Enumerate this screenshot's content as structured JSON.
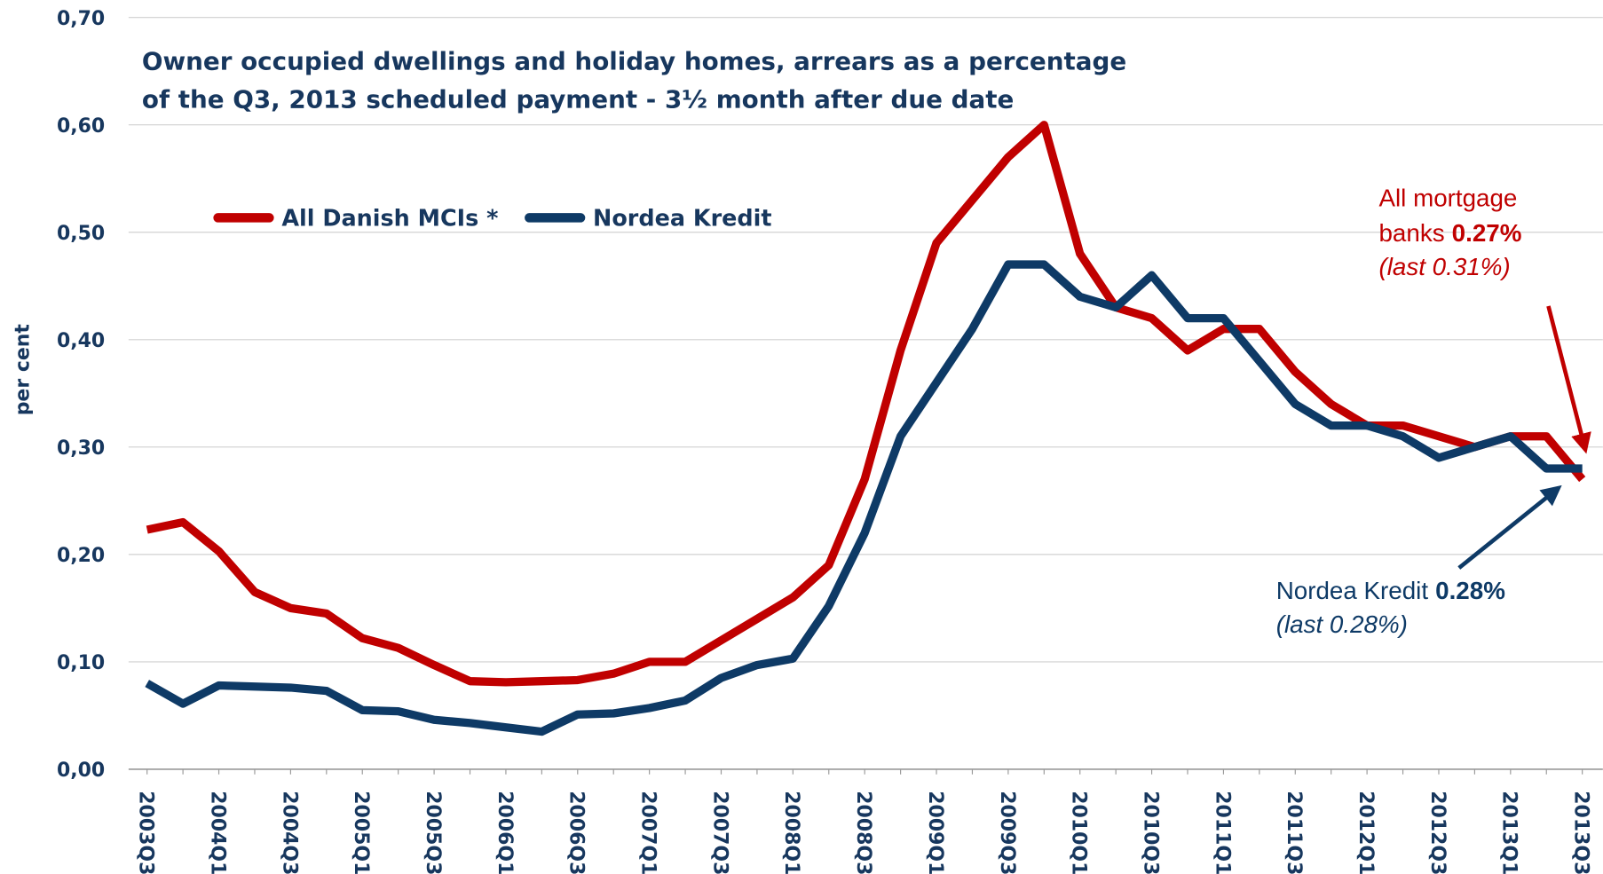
{
  "chart_data": {
    "type": "line",
    "title": [
      "Owner occupied dwellings and holiday homes, arrears as a percentage",
      "of the Q3, 2013 scheduled payment - 3½ month after due date"
    ],
    "y_label": "per cent",
    "categories": [
      "2003Q3",
      null,
      "2004Q1",
      null,
      "2004Q3",
      null,
      "2005Q1",
      null,
      "2005Q3",
      null,
      "2006Q1",
      null,
      "2006Q3",
      null,
      "2007Q1",
      null,
      "2007Q3",
      null,
      "2008Q1",
      null,
      "2008Q3",
      null,
      "2009Q1",
      null,
      "2009Q3",
      null,
      "2010Q1",
      null,
      "2010Q3",
      null,
      "2011Q1",
      null,
      "2011Q3",
      null,
      "2012Q1",
      null,
      "2012Q3",
      null,
      "2013Q1",
      null,
      "2013Q3"
    ],
    "series": [
      {
        "name": "All Danish MCIs *",
        "color": "#c00000",
        "values": [
          0.223,
          0.23,
          0.203,
          0.165,
          0.15,
          0.145,
          0.122,
          0.113,
          0.097,
          0.082,
          0.081,
          0.082,
          0.083,
          0.089,
          0.1,
          0.1,
          0.12,
          0.14,
          0.16,
          0.19,
          0.27,
          0.39,
          0.49,
          0.53,
          0.57,
          0.6,
          0.48,
          0.43,
          0.42,
          0.39,
          0.41,
          0.41,
          0.37,
          0.34,
          0.32,
          0.32,
          0.31,
          0.3,
          0.31,
          0.31,
          0.27
        ]
      },
      {
        "name": "Nordea Kredit",
        "color": "#0e3a66",
        "values": [
          0.08,
          0.061,
          0.078,
          0.077,
          0.076,
          0.073,
          0.055,
          0.054,
          0.046,
          0.043,
          0.039,
          0.035,
          0.051,
          0.052,
          0.057,
          0.064,
          0.085,
          0.097,
          0.103,
          0.152,
          0.22,
          0.31,
          0.36,
          0.41,
          0.47,
          0.47,
          0.44,
          0.43,
          0.46,
          0.42,
          0.42,
          0.38,
          0.34,
          0.32,
          0.32,
          0.31,
          0.29,
          0.3,
          0.31,
          0.28,
          0.28
        ]
      }
    ],
    "ylim": [
      0,
      0.7
    ],
    "yticks": [
      {
        "value": 0,
        "label": "0,00"
      },
      {
        "value": 0.1,
        "label": "0,10"
      },
      {
        "value": 0.2,
        "label": "0,20"
      },
      {
        "value": 0.3,
        "label": "0,30"
      },
      {
        "value": 0.4,
        "label": "0,40"
      },
      {
        "value": 0.5,
        "label": "0,50"
      },
      {
        "value": 0.6,
        "label": "0,60"
      },
      {
        "value": 0.7,
        "label": "0,70"
      }
    ],
    "grid": true,
    "legend": "top-left",
    "annotations": [
      {
        "line1": "All mortgage",
        "line2": "banks",
        "highlight": "0.27%",
        "note": "(last 0.31%)"
      },
      {
        "line1": "Nordea Kredit",
        "highlight": "0.28%",
        "note": "(last 0.28%)"
      }
    ]
  }
}
